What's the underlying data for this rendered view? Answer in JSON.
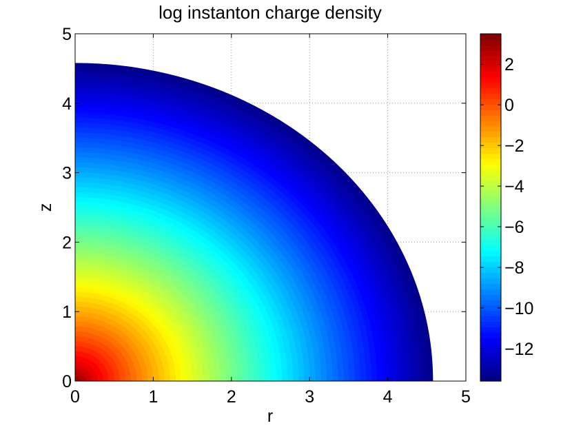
{
  "chart_data": {
    "type": "heatmap",
    "subtype": "filled-contour",
    "title": "log instanton charge density",
    "xlabel": "r",
    "ylabel": "z",
    "xlim": [
      0,
      5
    ],
    "ylim": [
      0,
      5
    ],
    "xticks": [
      "0",
      "1",
      "2",
      "3",
      "4",
      "5"
    ],
    "yticks": [
      "0",
      "1",
      "2",
      "3",
      "4",
      "5"
    ],
    "grid": true,
    "grid_style": "dotted",
    "colormap": "jet",
    "domain": {
      "shape": "quarter-disk",
      "radius": 4.58
    },
    "value_model": {
      "description": "value depends on radial distance d = sqrt(r^2 + z^2)",
      "center_value": 3.3,
      "edge_value": -13.5
    },
    "colorbar": {
      "range": [
        -13.6,
        3.5
      ],
      "ticks": [
        "2",
        "0",
        "−2",
        "−4",
        "−6",
        "−8",
        "−10",
        "−12"
      ],
      "tick_values": [
        2,
        0,
        -2,
        -4,
        -6,
        -8,
        -10,
        -12
      ],
      "location": "right"
    }
  }
}
